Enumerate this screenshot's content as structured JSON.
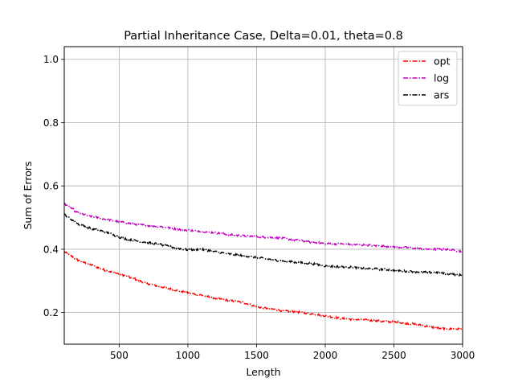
{
  "chart_data": {
    "type": "line",
    "title": "Partial Inheritance Case, Delta=0.01, theta=0.8",
    "xlabel": "Length",
    "ylabel": "Sum of Errors",
    "xlim": [
      100,
      3000
    ],
    "ylim": [
      0.1,
      1.04
    ],
    "xticks": [
      500,
      1000,
      1500,
      2000,
      2500,
      3000
    ],
    "yticks": [
      0.2,
      0.4,
      0.6,
      0.8,
      1.0
    ],
    "xtick_labels": [
      "500",
      "1000",
      "1500",
      "2000",
      "2500",
      "3000"
    ],
    "ytick_labels": [
      "0.2",
      "0.4",
      "0.6",
      "0.8",
      "1.0"
    ],
    "grid": true,
    "legend_position": "top-right",
    "series": [
      {
        "name": "opt",
        "color": "#ff0000",
        "x": [
          100,
          200,
          300,
          400,
          500,
          600,
          700,
          800,
          900,
          1000,
          1100,
          1200,
          1300,
          1400,
          1500,
          1600,
          1700,
          1800,
          1900,
          2000,
          2100,
          2200,
          2300,
          2400,
          2500,
          2600,
          2700,
          2800,
          2900,
          3000
        ],
        "values": [
          0.392,
          0.365,
          0.35,
          0.333,
          0.322,
          0.308,
          0.292,
          0.282,
          0.272,
          0.262,
          0.255,
          0.245,
          0.238,
          0.232,
          0.218,
          0.212,
          0.205,
          0.202,
          0.196,
          0.19,
          0.182,
          0.178,
          0.176,
          0.172,
          0.17,
          0.166,
          0.16,
          0.152,
          0.148,
          0.148
        ]
      },
      {
        "name": "log",
        "color": "#bf00bf",
        "x": [
          100,
          200,
          300,
          400,
          500,
          600,
          700,
          800,
          900,
          1000,
          1100,
          1200,
          1300,
          1400,
          1500,
          1600,
          1700,
          1800,
          1900,
          2000,
          2100,
          2200,
          2300,
          2400,
          2500,
          2600,
          2700,
          2800,
          2900,
          3000
        ],
        "values": [
          0.545,
          0.515,
          0.503,
          0.495,
          0.487,
          0.48,
          0.475,
          0.472,
          0.465,
          0.46,
          0.457,
          0.452,
          0.446,
          0.442,
          0.44,
          0.437,
          0.434,
          0.428,
          0.422,
          0.418,
          0.417,
          0.415,
          0.413,
          0.41,
          0.408,
          0.405,
          0.401,
          0.4,
          0.399,
          0.392
        ]
      },
      {
        "name": "ars",
        "color": "#000000",
        "x": [
          100,
          200,
          300,
          400,
          500,
          600,
          700,
          800,
          900,
          1000,
          1100,
          1200,
          1300,
          1400,
          1500,
          1600,
          1700,
          1800,
          1900,
          2000,
          2100,
          2200,
          2300,
          2400,
          2500,
          2600,
          2700,
          2800,
          2900,
          3000
        ],
        "values": [
          0.51,
          0.48,
          0.465,
          0.455,
          0.438,
          0.428,
          0.422,
          0.415,
          0.405,
          0.398,
          0.4,
          0.392,
          0.385,
          0.38,
          0.374,
          0.368,
          0.362,
          0.358,
          0.355,
          0.347,
          0.345,
          0.343,
          0.339,
          0.337,
          0.334,
          0.33,
          0.328,
          0.326,
          0.322,
          0.318
        ]
      }
    ]
  }
}
